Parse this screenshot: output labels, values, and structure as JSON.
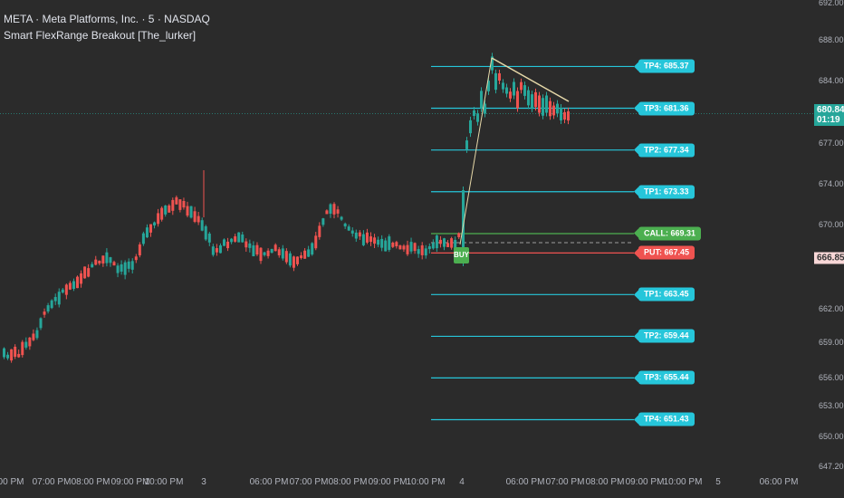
{
  "symbol": {
    "title": "META · Meta Platforms, Inc. · 5 · NASDAQ",
    "indicator": "Smart FlexRange Breakout [The_lurker]"
  },
  "price_axis": {
    "ticks": [
      "692.00",
      "688.00",
      "684.00",
      "677.00",
      "674.00",
      "670.00",
      "666.00",
      "662.00",
      "659.00",
      "656.00",
      "653.00",
      "650.00",
      "647.20"
    ],
    "current_price": "680.84",
    "countdown": "01:19",
    "marker_price": "666.85"
  },
  "time_axis": {
    "ticks": [
      "00 PM",
      "07:00 PM",
      "08:00 PM",
      "09:00 PM",
      "10:00 PM",
      "3",
      "06:00 PM",
      "07:00 PM",
      "08:00 PM",
      "09:00 PM",
      "10:00 PM",
      "4",
      "06:00 PM",
      "07:00 PM",
      "08:00 PM",
      "09:00 PM",
      "10:00 PM",
      "5",
      "06:00 PM"
    ]
  },
  "levels": [
    {
      "label": "TP4: 685.37",
      "kind": "tp",
      "price": 685.37
    },
    {
      "label": "TP3: 681.36",
      "kind": "tp",
      "price": 681.36
    },
    {
      "label": "TP2: 677.34",
      "kind": "tp",
      "price": 677.34
    },
    {
      "label": "TP1: 673.33",
      "kind": "tp",
      "price": 673.33
    },
    {
      "label": "CALL: 669.31",
      "kind": "call",
      "price": 669.31
    },
    {
      "label": "PUT: 667.45",
      "kind": "put",
      "price": 667.45
    },
    {
      "label": "TP1: 663.45",
      "kind": "tp",
      "price": 663.45
    },
    {
      "label": "TP2: 659.44",
      "kind": "tp",
      "price": 659.44
    },
    {
      "label": "TP3: 655.44",
      "kind": "tp",
      "price": 655.44
    },
    {
      "label": "TP4: 651.43",
      "kind": "tp",
      "price": 651.43
    }
  ],
  "signal": {
    "label": "BUY"
  },
  "colors": {
    "background": "#2b2b2b",
    "up": "#26a69a",
    "down": "#ef5350",
    "tp": "#26c6da",
    "call": "#4caf50",
    "put": "#ef5350",
    "current": "#26a69a",
    "marker_bg": "#f8d7d7"
  }
}
